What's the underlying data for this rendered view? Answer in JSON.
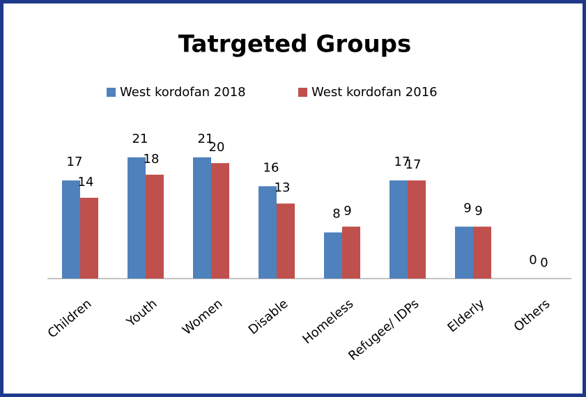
{
  "chart_data": {
    "type": "bar",
    "title": "Tatrgeted Groups",
    "categories": [
      "Children",
      "Youth",
      "Women",
      "Disable",
      "Homeless",
      "Refugee/ IDPs",
      "Elderly",
      "Others"
    ],
    "series": [
      {
        "name": "West kordofan 2018",
        "color": "#4f81bd",
        "values": [
          17,
          21,
          21,
          16,
          8,
          17,
          9,
          0
        ]
      },
      {
        "name": "West kordofan 2016",
        "color": "#c0504d",
        "values": [
          14,
          18,
          20,
          13,
          9,
          17,
          9,
          0
        ]
      }
    ]
  }
}
